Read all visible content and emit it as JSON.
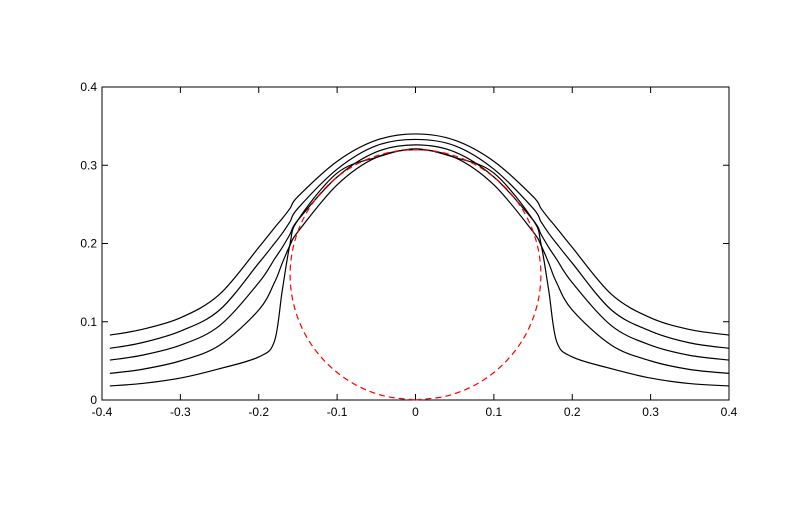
{
  "chart_data": {
    "type": "line",
    "x": [
      -0.39,
      -0.35,
      -0.3,
      -0.25,
      -0.2,
      -0.18,
      -0.17,
      -0.16,
      -0.15,
      -0.1,
      -0.05,
      0,
      0.05,
      0.1,
      0.15,
      0.16,
      0.17,
      0.18,
      0.2,
      0.25,
      0.3,
      0.35,
      0.4
    ],
    "series": [
      {
        "color": "#000000",
        "values": [
          0.083,
          0.09,
          0.105,
          0.135,
          0.195,
          0.22,
          0.232,
          0.245,
          0.26,
          0.305,
          0.332,
          0.34,
          0.332,
          0.305,
          0.26,
          0.245,
          0.232,
          0.22,
          0.195,
          0.135,
          0.105,
          0.09,
          0.083
        ]
      },
      {
        "color": "#000000",
        "values": [
          0.066,
          0.073,
          0.088,
          0.115,
          0.175,
          0.2,
          0.213,
          0.228,
          0.245,
          0.295,
          0.325,
          0.333,
          0.325,
          0.295,
          0.245,
          0.228,
          0.213,
          0.2,
          0.175,
          0.115,
          0.088,
          0.073,
          0.066
        ]
      },
      {
        "color": "#000000",
        "values": [
          0.051,
          0.057,
          0.07,
          0.095,
          0.15,
          0.18,
          0.195,
          0.212,
          0.23,
          0.285,
          0.317,
          0.326,
          0.317,
          0.285,
          0.23,
          0.212,
          0.195,
          0.18,
          0.15,
          0.095,
          0.07,
          0.057,
          0.051
        ]
      },
      {
        "color": "#000000",
        "values": [
          0.034,
          0.039,
          0.05,
          0.07,
          0.115,
          0.15,
          0.175,
          0.198,
          0.215,
          0.275,
          0.31,
          0.32,
          0.31,
          0.275,
          0.215,
          0.198,
          0.175,
          0.15,
          0.115,
          0.07,
          0.05,
          0.039,
          0.034
        ]
      },
      {
        "color": "#000000",
        "values": [
          0.018,
          0.021,
          0.028,
          0.04,
          0.055,
          0.075,
          0.14,
          0.2,
          0.23,
          0.29,
          0.31,
          0.321,
          0.31,
          0.29,
          0.23,
          0.2,
          0.14,
          0.075,
          0.055,
          0.04,
          0.028,
          0.021,
          0.018
        ]
      },
      {
        "color": "#ff0000",
        "dashed": true,
        "x": [
          0,
          0.0414,
          0.08,
          0.1131,
          0.1386,
          0.1545,
          0.16,
          0.1545,
          0.1386,
          0.1131,
          0.08,
          0.0414,
          0,
          -0.0414,
          -0.08,
          -0.1131,
          -0.1386,
          -0.1545,
          -0.16,
          -0.1545,
          -0.1386,
          -0.1131,
          -0.08,
          -0.0414,
          0
        ],
        "values": [
          0,
          0.0055,
          0.0214,
          0.0469,
          0.08,
          0.1186,
          0.16,
          0.2014,
          0.24,
          0.2731,
          0.2986,
          0.3145,
          0.32,
          0.3145,
          0.2986,
          0.2731,
          0.24,
          0.2014,
          0.16,
          0.1186,
          0.08,
          0.0469,
          0.0214,
          0.0055,
          0
        ]
      }
    ],
    "xlim": [
      -0.4,
      0.4
    ],
    "xticks": [
      -0.4,
      -0.3,
      -0.2,
      -0.1,
      0,
      0.1,
      0.2,
      0.3,
      0.4
    ],
    "ylim": [
      0,
      0.4
    ],
    "yticks": [
      0,
      0.1,
      0.2,
      0.3,
      0.4
    ],
    "grid": false
  }
}
